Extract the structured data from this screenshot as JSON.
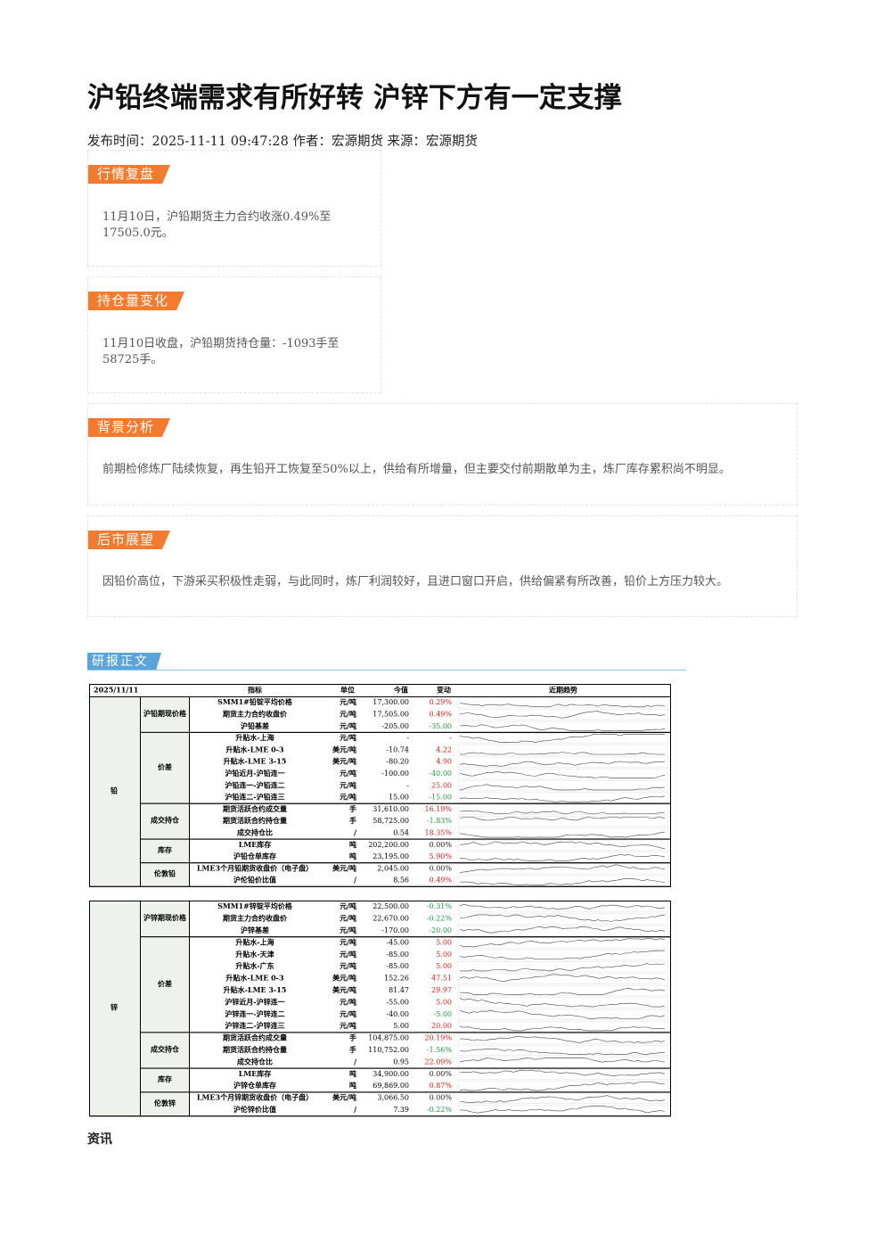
{
  "title": "沪铅终端需求有所好转 沪锌下方有一定支撑",
  "meta": "发布时间：2025-11-11 09:47:28 作者：宏源期货 来源：宏源期货",
  "sections": [
    {
      "heading": "行情复盘",
      "body": "11月10日，沪铅期货主力合约收涨0.49%至17505.0元。"
    },
    {
      "heading": "持仓量变化",
      "body": "11月10日收盘，沪铅期货持仓量：-1093手至58725手。"
    },
    {
      "heading": "背景分析",
      "body": "前期检修炼厂陆续恢复，再生铅开工恢复至50%以上，供给有所增量，但主要交付前期散单为主，炼厂库存累积尚不明显。"
    },
    {
      "heading": "后市展望",
      "body": "因铅价高位，下游采买积极性走弱，与此同时，炼厂利润较好，且进口窗口开启，供给偏紧有所改善，铅价上方压力较大。"
    }
  ],
  "report_heading": "研报正文",
  "tables": [
    {
      "date": "2025/11/11",
      "headers": [
        "指标",
        "单位",
        "今值",
        "变动",
        "近期趋势"
      ],
      "commodity": "铅",
      "groups": [
        {
          "name": "沪铅期现价格",
          "rows": [
            [
              "SMM1#铅锭平均价格",
              "元/吨",
              "17,300.00",
              "0.29%"
            ],
            [
              "期货主力合约收盘价",
              "元/吨",
              "17,505.00",
              "0.49%"
            ],
            [
              "沪铅基差",
              "元/吨",
              "-205.00",
              "-35.00"
            ]
          ]
        },
        {
          "name": "价差",
          "rows": [
            [
              "升贴水-上海",
              "元/吨",
              "-",
              "-"
            ],
            [
              "升贴水-LME 0-3",
              "美元/吨",
              "-10.74",
              "4.22"
            ],
            [
              "升贴水-LME 3-15",
              "美元/吨",
              "-80.20",
              "4.90"
            ],
            [
              "沪铅近月-沪铅连一",
              "元/吨",
              "-100.00",
              "-40.00"
            ],
            [
              "沪铅连一-沪铅连二",
              "元/吨",
              "-",
              "25.00"
            ],
            [
              "沪铅连二-沪铅连三",
              "元/吨",
              "15.00",
              "-15.00"
            ]
          ]
        },
        {
          "name": "成交持仓",
          "rows": [
            [
              "期货活跃合约成交量",
              "手",
              "31,610.00",
              "16.19%"
            ],
            [
              "期货活跃合约持仓量",
              "手",
              "58,725.00",
              "-1.83%"
            ],
            [
              "成交持仓比",
              "/",
              "0.54",
              "18.35%"
            ]
          ]
        },
        {
          "name": "库存",
          "rows": [
            [
              "LME库存",
              "吨",
              "202,200.00",
              "0.00%"
            ],
            [
              "沪铅仓单库存",
              "吨",
              "23,195.00",
              "5.90%"
            ]
          ]
        },
        {
          "name": "伦敦铅",
          "rows": [
            [
              "LME3个月铅期货收盘价（电子盘）",
              "美元/吨",
              "2,045.00",
              "0.00%"
            ],
            [
              "沪伦铅价比值",
              "/",
              "8.56",
              "0.49%"
            ]
          ]
        }
      ]
    },
    {
      "commodity": "锌",
      "groups": [
        {
          "name": "沪锌期现价格",
          "rows": [
            [
              "SMM1#锌锭平均价格",
              "元/吨",
              "22,500.00",
              "-0.31%"
            ],
            [
              "期货主力合约收盘价",
              "元/吨",
              "22,670.00",
              "-0.22%"
            ],
            [
              "沪锌基差",
              "元/吨",
              "-170.00",
              "-20.00"
            ]
          ]
        },
        {
          "name": "价差",
          "rows": [
            [
              "升贴水-上海",
              "元/吨",
              "-45.00",
              "5.00"
            ],
            [
              "升贴水-天津",
              "元/吨",
              "-85.00",
              "5.00"
            ],
            [
              "升贴水-广东",
              "元/吨",
              "-85.00",
              "5.00"
            ],
            [
              "升贴水-LME 0-3",
              "美元/吨",
              "152.26",
              "47.51"
            ],
            [
              "升贴水-LME 3-15",
              "美元/吨",
              "81.47",
              "29.97"
            ],
            [
              "沪锌近月-沪锌连一",
              "元/吨",
              "-55.00",
              "5.00"
            ],
            [
              "沪锌连一-沪锌连二",
              "元/吨",
              "-40.00",
              "-5.00"
            ],
            [
              "沪锌连二-沪锌连三",
              "元/吨",
              "5.00",
              "20.00"
            ]
          ]
        },
        {
          "name": "成交持仓",
          "rows": [
            [
              "期货活跃合约成交量",
              "手",
              "104,875.00",
              "20.19%"
            ],
            [
              "期货活跃合约持仓量",
              "手",
              "110,752.00",
              "-1.56%"
            ],
            [
              "成交持仓比",
              "/",
              "0.95",
              "22.09%"
            ]
          ]
        },
        {
          "name": "库存",
          "rows": [
            [
              "LME库存",
              "吨",
              "34,900.00",
              "0.00%"
            ],
            [
              "沪锌仓单库存",
              "吨",
              "69,869.00",
              "0.87%"
            ]
          ]
        },
        {
          "name": "伦敦锌",
          "rows": [
            [
              "LME3个月锌期货收盘价（电子盘）",
              "美元/吨",
              "3,066.50",
              "0.00%"
            ],
            [
              "沪伦锌价比值",
              "/",
              "7.39",
              "-0.22%"
            ]
          ]
        }
      ]
    }
  ],
  "footer_heading": "资讯"
}
